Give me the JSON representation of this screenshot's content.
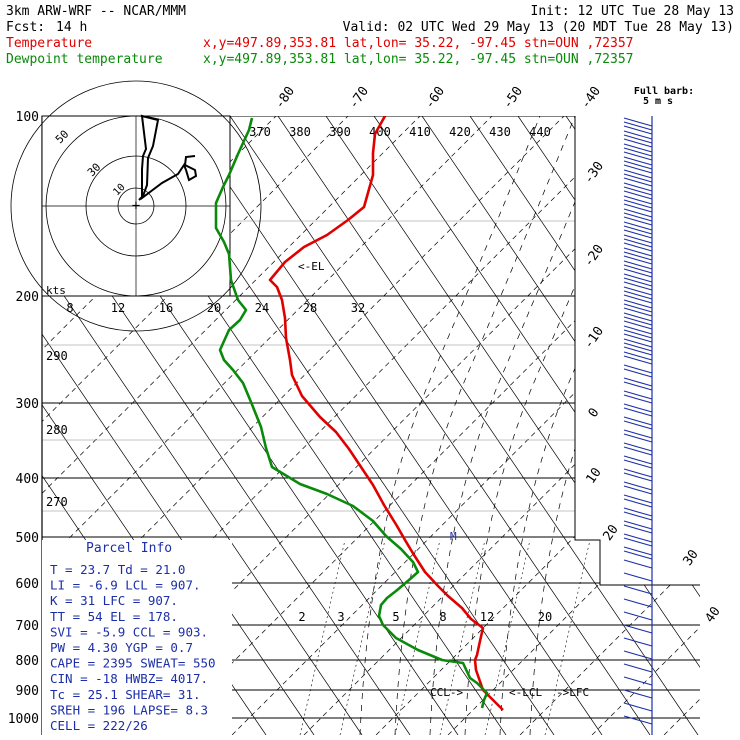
{
  "header": {
    "model": "3km ARW-WRF -- NCAR/MMM",
    "init": "Init: 12 UTC Tue 28 May 13",
    "fcst_label": "Fcst:",
    "fcst_value": "14 h",
    "valid": "Valid: 02 UTC Wed 29 May 13 (20 MDT Tue 28 May 13)"
  },
  "legend": {
    "temperature": {
      "label": "Temperature",
      "location": "x,y=497.89,353.81   lat,lon= 35.22, -97.45  stn=OUN ,72357",
      "color": "#e00000"
    },
    "dewpoint": {
      "label": "Dewpoint temperature",
      "location": "x,y=497.89,353.81   lat,lon= 35.22, -97.45  stn=OUN ,72357",
      "color": "#0a8a0a"
    }
  },
  "barb_title": [
    "Full barb:",
    "5 m s"
  ],
  "hodograph": {
    "axis_label": "kts",
    "ring_labels": [
      "50",
      "30",
      "10"
    ]
  },
  "parcel_info": {
    "title": "Parcel Info",
    "lines": [
      "T  =    23.7  Td =  21.0",
      "LI =   -6.9  LCL =  907.",
      "K  =     31  LFC =  907.",
      "TT =     54  EL  =  178.",
      "SVI =  -5.9  CCL =  903.",
      "PW =   4.30  YGP =   0.7",
      "CAPE =  2395  SWEAT=  550",
      "CIN  =   -18  HWBZ= 4017.",
      "Tc =   25.1  SHEAR=  31.",
      "SREH =   196  LAPSE=  8.3",
      "CELL = 222/26"
    ]
  },
  "chart_data": {
    "type": "line",
    "title": "",
    "ylabel": "",
    "xlabel": "",
    "pressure_levels": [
      "100",
      "200",
      "300",
      "400",
      "500",
      "600",
      "700",
      "800",
      "900",
      "1000"
    ],
    "temperature_labels": [
      "-80",
      "-70",
      "-60",
      "-50",
      "-40",
      "-30",
      "-20",
      "-10",
      "0",
      "10",
      "20",
      "30",
      "40"
    ],
    "theta_labels_top": [
      "370",
      "380",
      "390",
      "400",
      "410",
      "420",
      "430",
      "440"
    ],
    "theta_labels_left": [
      "290",
      "280",
      "270"
    ],
    "hodo_speed_labels": [
      "8",
      "12",
      "16",
      "20",
      "24",
      "28",
      "32"
    ],
    "mixing_ratio_labels": [
      "2",
      "3",
      "5",
      "8",
      "12",
      "20"
    ],
    "annotations": [
      "<-EL",
      "CCL->",
      "<-LCL",
      "->LFC",
      "M"
    ],
    "series": [
      {
        "name": "Temperature",
        "color": "#e00000",
        "points": [
          [
            385,
            116
          ],
          [
            375,
            134
          ],
          [
            373,
            153
          ],
          [
            373,
            175
          ],
          [
            364,
            207
          ],
          [
            348,
            220
          ],
          [
            327,
            235
          ],
          [
            304,
            247
          ],
          [
            285,
            262
          ],
          [
            270,
            280
          ],
          [
            277,
            287
          ],
          [
            282,
            300
          ],
          [
            285,
            318
          ],
          [
            286,
            338
          ],
          [
            290,
            360
          ],
          [
            292,
            375
          ],
          [
            302,
            396
          ],
          [
            320,
            417
          ],
          [
            336,
            432
          ],
          [
            349,
            449
          ],
          [
            361,
            467
          ],
          [
            373,
            485
          ],
          [
            384,
            505
          ],
          [
            397,
            526
          ],
          [
            405,
            540
          ],
          [
            414,
            555
          ],
          [
            425,
            572
          ],
          [
            438,
            586
          ],
          [
            448,
            596
          ],
          [
            462,
            608
          ],
          [
            471,
            619
          ],
          [
            483,
            628
          ],
          [
            480,
            641
          ],
          [
            477,
            655
          ],
          [
            475,
            660
          ],
          [
            476,
            670
          ],
          [
            483,
            690
          ],
          [
            492,
            699
          ],
          [
            503,
            710
          ]
        ]
      },
      {
        "name": "Dewpoint temperature",
        "color": "#0a8a0a",
        "points": [
          [
            252,
            118
          ],
          [
            249,
            130
          ],
          [
            238,
            154
          ],
          [
            229,
            175
          ],
          [
            223,
            187
          ],
          [
            216,
            203
          ],
          [
            216,
            228
          ],
          [
            224,
            242
          ],
          [
            229,
            254
          ],
          [
            231,
            280
          ],
          [
            238,
            300
          ],
          [
            246,
            310
          ],
          [
            240,
            320
          ],
          [
            229,
            330
          ],
          [
            220,
            350
          ],
          [
            224,
            360
          ],
          [
            233,
            370
          ],
          [
            243,
            383
          ],
          [
            251,
            402
          ],
          [
            261,
            427
          ],
          [
            266,
            448
          ],
          [
            272,
            467
          ],
          [
            300,
            484
          ],
          [
            327,
            494
          ],
          [
            353,
            506
          ],
          [
            373,
            521
          ],
          [
            386,
            536
          ],
          [
            401,
            549
          ],
          [
            413,
            562
          ],
          [
            418,
            572
          ],
          [
            409,
            580
          ],
          [
            396,
            591
          ],
          [
            387,
            598
          ],
          [
            381,
            605
          ],
          [
            379,
            616
          ],
          [
            383,
            625
          ],
          [
            396,
            638
          ],
          [
            418,
            650
          ],
          [
            442,
            660
          ],
          [
            463,
            663
          ],
          [
            470,
            678
          ],
          [
            477,
            683
          ],
          [
            487,
            693
          ],
          [
            484,
            700
          ],
          [
            482,
            708
          ]
        ]
      }
    ],
    "hodograph_trace": [
      [
        139,
        200
      ],
      [
        143,
        196
      ],
      [
        147,
        185
      ],
      [
        148,
        158
      ],
      [
        153,
        146
      ],
      [
        158,
        120
      ],
      [
        142,
        116
      ],
      [
        146,
        149
      ],
      [
        143,
        156
      ],
      [
        142,
        169
      ],
      [
        142,
        198
      ],
      [
        162,
        183
      ],
      [
        178,
        174
      ],
      [
        184,
        165
      ],
      [
        186,
        170
      ],
      [
        189,
        180
      ],
      [
        196,
        176
      ],
      [
        195,
        170
      ],
      [
        185,
        165
      ],
      [
        186,
        157
      ],
      [
        195,
        156
      ]
    ]
  },
  "colors": {
    "temperature": "#e00000",
    "dewpoint": "#0a8a0a",
    "wind_barbs": "#1c2fa8",
    "grid": "#000000"
  }
}
